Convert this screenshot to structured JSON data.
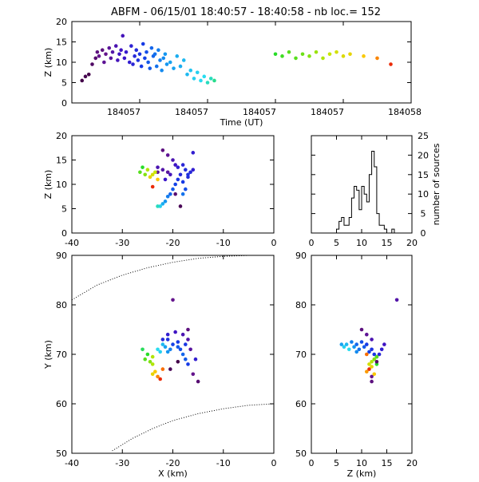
{
  "title": "ABFM - 06/15/01 18:40:57 - 18:40:58 - nb loc.=    152",
  "chart_data": [
    {
      "id": "time_height",
      "type": "scatter",
      "xlabel": "Time (UT)",
      "ylabel": "Z (km)",
      "x_tick_labels": [
        "184057",
        "184057",
        "184057",
        "184057",
        "184058"
      ],
      "x_tick_fracs": [
        0.2,
        0.4,
        0.6,
        0.8,
        1.0
      ],
      "yticks": [
        0,
        5,
        10,
        15,
        20
      ],
      "ylim": [
        0,
        20
      ],
      "xlim_frac": [
        0,
        1
      ],
      "points": [
        [
          0.03,
          5.5,
          0.02
        ],
        [
          0.04,
          6.5,
          0.03
        ],
        [
          0.05,
          7.0,
          0.02
        ],
        [
          0.06,
          9.5,
          0.06
        ],
        [
          0.07,
          11.0,
          0.08
        ],
        [
          0.075,
          12.5,
          0.1
        ],
        [
          0.08,
          11.5,
          0.12
        ],
        [
          0.09,
          13.0,
          0.1
        ],
        [
          0.095,
          10.0,
          0.14
        ],
        [
          0.1,
          12.0,
          0.12
        ],
        [
          0.11,
          13.5,
          0.15
        ],
        [
          0.115,
          11.0,
          0.16
        ],
        [
          0.12,
          12.5,
          0.18
        ],
        [
          0.13,
          14.0,
          0.2
        ],
        [
          0.135,
          10.5,
          0.22
        ],
        [
          0.14,
          12.0,
          0.24
        ],
        [
          0.145,
          13.0,
          0.24
        ],
        [
          0.15,
          16.5,
          0.22
        ],
        [
          0.155,
          11.0,
          0.26
        ],
        [
          0.16,
          12.5,
          0.28
        ],
        [
          0.17,
          10.0,
          0.3
        ],
        [
          0.175,
          14.0,
          0.32
        ],
        [
          0.18,
          9.5,
          0.34
        ],
        [
          0.185,
          11.5,
          0.36
        ],
        [
          0.19,
          13.0,
          0.38
        ],
        [
          0.195,
          10.5,
          0.4
        ],
        [
          0.2,
          12.0,
          0.42
        ],
        [
          0.205,
          9.0,
          0.44
        ],
        [
          0.21,
          14.5,
          0.44
        ],
        [
          0.215,
          11.0,
          0.46
        ],
        [
          0.22,
          12.5,
          0.48
        ],
        [
          0.225,
          10.0,
          0.5
        ],
        [
          0.23,
          8.5,
          0.5
        ],
        [
          0.235,
          13.5,
          0.52
        ],
        [
          0.24,
          11.5,
          0.52
        ],
        [
          0.245,
          12.0,
          0.54
        ],
        [
          0.25,
          9.0,
          0.54
        ],
        [
          0.255,
          13.0,
          0.56
        ],
        [
          0.26,
          10.5,
          0.56
        ],
        [
          0.265,
          8.0,
          0.58
        ],
        [
          0.27,
          11.0,
          0.58
        ],
        [
          0.275,
          12.0,
          0.6
        ],
        [
          0.28,
          9.5,
          0.6
        ],
        [
          0.29,
          10.0,
          0.62
        ],
        [
          0.3,
          8.5,
          0.62
        ],
        [
          0.31,
          11.5,
          0.64
        ],
        [
          0.32,
          9.0,
          0.64
        ],
        [
          0.33,
          10.5,
          0.66
        ],
        [
          0.34,
          7.0,
          0.66
        ],
        [
          0.35,
          8.0,
          0.68
        ],
        [
          0.36,
          6.0,
          0.7
        ],
        [
          0.37,
          7.5,
          0.7
        ],
        [
          0.38,
          5.5,
          0.72
        ],
        [
          0.39,
          6.5,
          0.72
        ],
        [
          0.4,
          5.0,
          0.74
        ],
        [
          0.41,
          6.0,
          0.74
        ],
        [
          0.42,
          5.5,
          0.76
        ],
        [
          0.6,
          12.0,
          0.8
        ],
        [
          0.62,
          11.5,
          0.81
        ],
        [
          0.64,
          12.5,
          0.82
        ],
        [
          0.66,
          11.0,
          0.82
        ],
        [
          0.68,
          12.0,
          0.83
        ],
        [
          0.7,
          11.5,
          0.84
        ],
        [
          0.72,
          12.5,
          0.85
        ],
        [
          0.74,
          11.0,
          0.86
        ],
        [
          0.76,
          12.0,
          0.87
        ],
        [
          0.78,
          12.5,
          0.88
        ],
        [
          0.8,
          11.5,
          0.89
        ],
        [
          0.82,
          12.0,
          0.9
        ],
        [
          0.86,
          11.5,
          0.92
        ],
        [
          0.9,
          11.0,
          0.95
        ],
        [
          0.94,
          9.5,
          0.99
        ]
      ]
    },
    {
      "id": "xz_plan",
      "type": "scatter",
      "ylabel": "Z (km)",
      "xticks": [
        -40,
        -30,
        -20,
        -10,
        0
      ],
      "xlim": [
        -40,
        0
      ],
      "yticks": [
        0,
        5,
        10,
        15,
        20
      ],
      "ylim": [
        0,
        20
      ],
      "points": [
        [
          -22,
          17,
          0.1
        ],
        [
          -21,
          16,
          0.14
        ],
        [
          -20,
          15,
          0.2
        ],
        [
          -19.5,
          14,
          0.24
        ],
        [
          -19,
          13.5,
          0.3
        ],
        [
          -18,
          14,
          0.34
        ],
        [
          -17.5,
          13,
          0.38
        ],
        [
          -17,
          12,
          0.4
        ],
        [
          -18.5,
          12,
          0.36
        ],
        [
          -19,
          11,
          0.42
        ],
        [
          -19.5,
          10,
          0.46
        ],
        [
          -20,
          9,
          0.5
        ],
        [
          -20.5,
          8,
          0.52
        ],
        [
          -21,
          7.5,
          0.56
        ],
        [
          -21.5,
          6.5,
          0.6
        ],
        [
          -22,
          6,
          0.64
        ],
        [
          -22.5,
          5.5,
          0.7
        ],
        [
          -23,
          5.5,
          0.74
        ],
        [
          -18,
          10.5,
          0.44
        ],
        [
          -17.5,
          9,
          0.48
        ],
        [
          -18,
          8,
          0.54
        ],
        [
          -17,
          11.5,
          0.38
        ],
        [
          -16.5,
          12.5,
          0.36
        ],
        [
          -16,
          13,
          0.3
        ],
        [
          -23,
          13.5,
          0.2
        ],
        [
          -22,
          13,
          0.18
        ],
        [
          -21,
          12.5,
          0.16
        ],
        [
          -20.5,
          12,
          0.22
        ],
        [
          -21.5,
          11,
          0.26
        ],
        [
          -23,
          12.5,
          0.14
        ],
        [
          -25,
          13,
          0.86
        ],
        [
          -26,
          13.5,
          0.8
        ],
        [
          -26.5,
          12.5,
          0.82
        ],
        [
          -25.5,
          12,
          0.84
        ],
        [
          -24.5,
          11.5,
          0.9
        ],
        [
          -24,
          12,
          0.88
        ],
        [
          -23.5,
          12.5,
          0.87
        ],
        [
          -23,
          11,
          0.92
        ],
        [
          -24,
          9.5,
          0.99
        ],
        [
          -18.5,
          5.5,
          0.04
        ],
        [
          -19.5,
          8,
          0.08
        ],
        [
          -16,
          16.5,
          0.3
        ]
      ]
    },
    {
      "id": "histogram",
      "type": "bar",
      "ylabel": "number of sources",
      "xticks": [
        0,
        5,
        10,
        15,
        20
      ],
      "xlim": [
        0,
        20
      ],
      "yticks": [
        0,
        5,
        10,
        15,
        20,
        25
      ],
      "ylim": [
        0,
        25
      ],
      "bin_width": 0.5,
      "bin_starts": [
        5,
        5.5,
        6,
        6.5,
        7,
        7.5,
        8,
        8.5,
        9,
        9.5,
        10,
        10.5,
        11,
        11.5,
        12,
        12.5,
        13,
        13.5,
        14,
        14.5,
        15,
        15.5,
        16,
        16.5,
        17
      ],
      "values": [
        1,
        3,
        4,
        2,
        2,
        4,
        9,
        12,
        11,
        6,
        12,
        10,
        8,
        15,
        21,
        17,
        5,
        2,
        2,
        1,
        0,
        0,
        1,
        0,
        0
      ]
    },
    {
      "id": "xy_plan",
      "type": "scatter",
      "xlabel": "X (km)",
      "ylabel": "Y (km)",
      "xticks": [
        -40,
        -30,
        -20,
        -10,
        0
      ],
      "xlim": [
        -40,
        0
      ],
      "yticks": [
        50,
        60,
        70,
        80,
        90
      ],
      "ylim": [
        50,
        90
      ],
      "points": [
        [
          -20,
          81,
          0.12
        ],
        [
          -21,
          73,
          0.4
        ],
        [
          -20,
          72,
          0.46
        ],
        [
          -19,
          71.5,
          0.5
        ],
        [
          -18.5,
          71,
          0.48
        ],
        [
          -18,
          70,
          0.52
        ],
        [
          -17.5,
          69,
          0.5
        ],
        [
          -17,
          68,
          0.44
        ],
        [
          -17.5,
          72,
          0.42
        ],
        [
          -19,
          72.5,
          0.44
        ],
        [
          -20.5,
          71,
          0.56
        ],
        [
          -21,
          70.5,
          0.6
        ],
        [
          -21.5,
          71.5,
          0.62
        ],
        [
          -22,
          72,
          0.66
        ],
        [
          -22.5,
          70.5,
          0.7
        ],
        [
          -23,
          71,
          0.72
        ],
        [
          -22,
          73,
          0.36
        ],
        [
          -21,
          74,
          0.3
        ],
        [
          -19.5,
          74.5,
          0.24
        ],
        [
          -18,
          74,
          0.2
        ],
        [
          -17,
          73,
          0.18
        ],
        [
          -16.5,
          71,
          0.16
        ],
        [
          -16,
          66,
          0.12
        ],
        [
          -15,
          64.5,
          0.08
        ],
        [
          -17,
          75,
          0.1
        ],
        [
          -20.5,
          67,
          0.04
        ],
        [
          -19,
          68.5,
          0.02
        ],
        [
          -25,
          70,
          0.8
        ],
        [
          -25.5,
          69,
          0.82
        ],
        [
          -24.5,
          68.5,
          0.84
        ],
        [
          -24,
          68,
          0.86
        ],
        [
          -23.5,
          66.5,
          0.92
        ],
        [
          -23,
          65.5,
          0.95
        ],
        [
          -24,
          66,
          0.9
        ],
        [
          -26,
          71,
          0.78
        ],
        [
          -22.5,
          65,
          0.99
        ],
        [
          -24,
          69.5,
          0.86
        ],
        [
          -22,
          67,
          0.96
        ],
        [
          -15.5,
          69,
          0.3
        ]
      ],
      "boundary_curves": [
        [
          [
            -40,
            81
          ],
          [
            -35,
            84
          ],
          [
            -30,
            86
          ],
          [
            -25,
            87.5
          ],
          [
            -20,
            88.6
          ],
          [
            -15,
            89.4
          ],
          [
            -10,
            89.8
          ],
          [
            -5,
            90
          ]
        ],
        [
          [
            -32,
            50.5
          ],
          [
            -28,
            53
          ],
          [
            -24,
            55
          ],
          [
            -20,
            56.6
          ],
          [
            -15,
            58
          ],
          [
            -10,
            59
          ],
          [
            -5,
            59.7
          ],
          [
            0,
            60
          ]
        ]
      ]
    },
    {
      "id": "zy_plan",
      "type": "scatter",
      "xlabel": "Z (km)",
      "xticks": [
        0,
        5,
        10,
        15,
        20
      ],
      "xlim": [
        0,
        20
      ],
      "yticks": [
        50,
        60,
        70,
        80,
        90
      ],
      "ylim": [
        50,
        90
      ],
      "points": [
        [
          17,
          81,
          0.18
        ],
        [
          6,
          72,
          0.62
        ],
        [
          6.5,
          71.5,
          0.7
        ],
        [
          7,
          72,
          0.66
        ],
        [
          7.5,
          71,
          0.72
        ],
        [
          8,
          72.5,
          0.56
        ],
        [
          8.5,
          71.5,
          0.6
        ],
        [
          9,
          72,
          0.52
        ],
        [
          9.5,
          71,
          0.54
        ],
        [
          10,
          72.5,
          0.48
        ],
        [
          10.5,
          71.5,
          0.5
        ],
        [
          11,
          72,
          0.44
        ],
        [
          11.5,
          70.5,
          0.46
        ],
        [
          12,
          71,
          0.4
        ],
        [
          12.5,
          70,
          0.42
        ],
        [
          13,
          69.5,
          0.38
        ],
        [
          13.5,
          70,
          0.34
        ],
        [
          14,
          71,
          0.3
        ],
        [
          14.5,
          72,
          0.24
        ],
        [
          12,
          73,
          0.2
        ],
        [
          10,
          75,
          0.1
        ],
        [
          11,
          74,
          0.14
        ],
        [
          9,
          70.5,
          0.58
        ],
        [
          12,
          68.5,
          0.86
        ],
        [
          12.5,
          69,
          0.84
        ],
        [
          11.5,
          68,
          0.88
        ],
        [
          13,
          69.5,
          0.82
        ],
        [
          12,
          67.5,
          0.9
        ],
        [
          11,
          66.5,
          0.94
        ],
        [
          12.5,
          66,
          0.92
        ],
        [
          13,
          68,
          0.8
        ],
        [
          11,
          70,
          0.96
        ],
        [
          12,
          64.5,
          0.1
        ],
        [
          13,
          68.5,
          0.06
        ],
        [
          11.5,
          67,
          0.99
        ],
        [
          12,
          65.5,
          0.12
        ]
      ]
    }
  ]
}
